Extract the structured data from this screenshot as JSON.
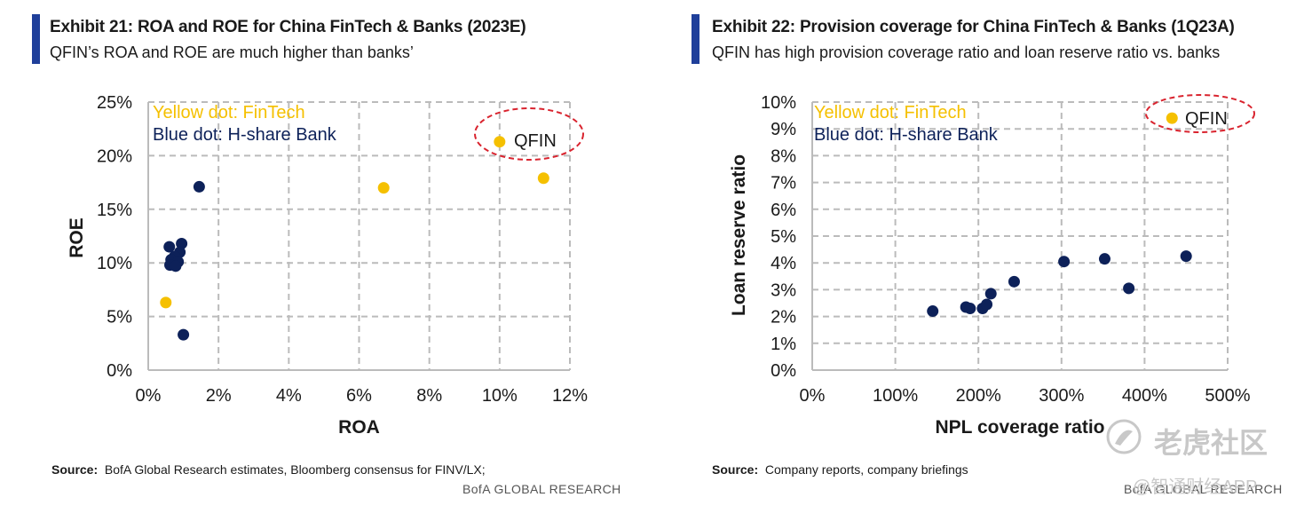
{
  "colors": {
    "accent": "#1f3f9a",
    "fintech": "#f5c000",
    "bank": "#0d2159",
    "grid": "#bbbbbb",
    "highlight": "#d9232e"
  },
  "chart_data": [
    {
      "type": "scatter",
      "title": "Exhibit 21: ROA and ROE for China FinTech & Banks (2023E)",
      "subtitle": "QFIN’s ROA and ROE are much higher than banks’",
      "xlabel": "ROA",
      "ylabel": "ROE",
      "xlim": [
        0,
        12
      ],
      "ylim": [
        0,
        25
      ],
      "x_ticks": [
        0,
        2,
        4,
        6,
        8,
        10,
        12
      ],
      "y_ticks": [
        0,
        5,
        10,
        15,
        20,
        25
      ],
      "tick_format": "percent",
      "grid": true,
      "annotations": {
        "yellow": "Yellow dot: FinTech",
        "blue": "Blue dot: H-share Bank"
      },
      "highlight_label": "QFIN",
      "series": [
        {
          "name": "FinTech",
          "color_key": "fintech",
          "points": [
            {
              "x": 10.0,
              "y": 21.3,
              "label": "QFIN"
            },
            {
              "x": 6.7,
              "y": 17.0
            },
            {
              "x": 11.25,
              "y": 17.9
            },
            {
              "x": 0.5,
              "y": 6.3
            }
          ]
        },
        {
          "name": "H-share Bank",
          "color_key": "bank",
          "points": [
            {
              "x": 1.45,
              "y": 17.1
            },
            {
              "x": 0.6,
              "y": 11.5
            },
            {
              "x": 0.95,
              "y": 11.8
            },
            {
              "x": 0.9,
              "y": 11.0
            },
            {
              "x": 0.75,
              "y": 10.6
            },
            {
              "x": 0.65,
              "y": 10.3
            },
            {
              "x": 0.85,
              "y": 10.1
            },
            {
              "x": 0.62,
              "y": 9.8
            },
            {
              "x": 0.78,
              "y": 9.7
            },
            {
              "x": 1.0,
              "y": 3.3
            }
          ]
        }
      ],
      "source_label": "Source:",
      "source_text": "BofA Global Research estimates, Bloomberg consensus  for FINV/LX;",
      "footer": "BofA GLOBAL RESEARCH"
    },
    {
      "type": "scatter",
      "title": "Exhibit 22: Provision coverage for China FinTech & Banks (1Q23A)",
      "subtitle": "QFIN has high provision coverage ratio and loan reserve ratio vs. banks",
      "xlabel": "NPL coverage ratio",
      "ylabel": "Loan reserve ratio",
      "xlim": [
        0,
        500
      ],
      "ylim": [
        0,
        10
      ],
      "x_ticks": [
        0,
        100,
        200,
        300,
        400,
        500
      ],
      "y_ticks": [
        0,
        1,
        2,
        3,
        4,
        5,
        6,
        7,
        8,
        9,
        10
      ],
      "tick_format": "percent",
      "grid": true,
      "annotations": {
        "yellow": "Yellow dot: FinTech",
        "blue": "Blue dot: H-share Bank"
      },
      "highlight_label": "QFIN",
      "series": [
        {
          "name": "FinTech",
          "color_key": "fintech",
          "points": [
            {
              "x": 433,
              "y": 9.4,
              "label": "QFIN"
            }
          ]
        },
        {
          "name": "H-share Bank",
          "color_key": "bank",
          "points": [
            {
              "x": 145,
              "y": 2.2
            },
            {
              "x": 185,
              "y": 2.35
            },
            {
              "x": 190,
              "y": 2.3
            },
            {
              "x": 205,
              "y": 2.3
            },
            {
              "x": 210,
              "y": 2.45
            },
            {
              "x": 215,
              "y": 2.85
            },
            {
              "x": 243,
              "y": 3.3
            },
            {
              "x": 303,
              "y": 4.05
            },
            {
              "x": 352,
              "y": 4.15
            },
            {
              "x": 381,
              "y": 3.05
            },
            {
              "x": 450,
              "y": 4.25
            }
          ]
        }
      ],
      "source_label": "Source:",
      "source_text": "Company reports, company briefings",
      "footer": "BofA GLOBAL RESEARCH"
    }
  ],
  "watermarks": {
    "main": "老虎社区",
    "sub": "@智通财经APP"
  }
}
